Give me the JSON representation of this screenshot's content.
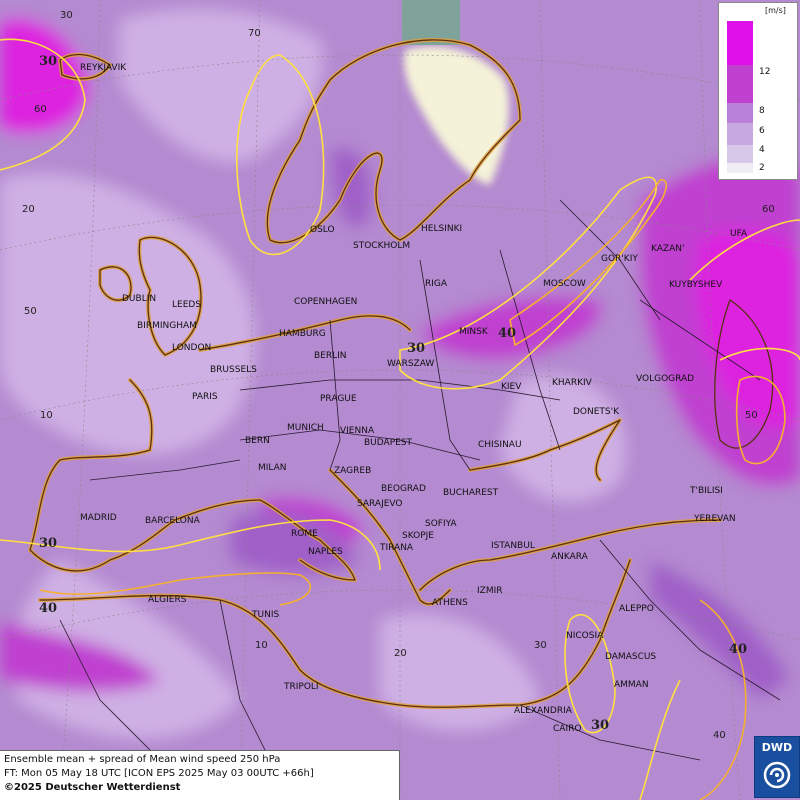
{
  "title": "Ensemble mean + spread of Mean wind speed 250 hPa",
  "forecast_time": "FT: Mon 05 May 18 UTC [ICON EPS 2025 May 03 00UTC +66h]",
  "copyright": "©2025 Deutscher Wetterdienst",
  "logo_text": "DWD",
  "legend": {
    "unit": "[m/s]",
    "levels": [
      {
        "label": "12",
        "color": "#e010e8"
      },
      {
        "label": "8",
        "color": "#c040d0"
      },
      {
        "label": "6",
        "color": "#b880d8"
      },
      {
        "label": "4",
        "color": "#c8a8e0"
      },
      {
        "label": "2",
        "color": "#d8c8e8"
      },
      {
        "label": "",
        "color": "#f0ecf4"
      }
    ]
  },
  "colors": {
    "background": "#b48ad0",
    "light_area": "#cfb0e4",
    "dark_area": "#a060c8",
    "max_area": "#dd22e0",
    "low_spread": "#f4f2d8",
    "coast": "#5a3010",
    "coast_glow": "#e0a040",
    "contour_30": "#ffe040",
    "contour_40": "#f5b030",
    "grid": "#888888"
  },
  "cities": [
    "REYKJAVIK",
    "OSLO",
    "STOCKHOLM",
    "HELSINKI",
    "RIGA",
    "MOSCOW",
    "GOR'KIY",
    "KAZAN'",
    "UFA",
    "KUYBYSHEV",
    "DUBLIN",
    "LEEDS",
    "BIRMINGHAM",
    "LONDON",
    "COPENHAGEN",
    "HAMBURG",
    "MINSK",
    "BERLIN",
    "WARSZAW",
    "BRUSSELS",
    "PARIS",
    "KIEV",
    "KHARKIV",
    "VOLGOGRAD",
    "PRAGUE",
    "DONETS'K",
    "MUNICH",
    "VIENNA",
    "BERN",
    "BUDAPEST",
    "CHISINAU",
    "MILAN",
    "ZAGREB",
    "BEOGRAD",
    "BUCHAREST",
    "T'BILISI",
    "SARAJEVO",
    "MADRID",
    "BARCELONA",
    "SOFIYA",
    "YEREVAN",
    "ROME",
    "SKOPJE",
    "NAPLES",
    "TIRANA",
    "ISTANBUL",
    "ANKARA",
    "ALGIERS",
    "IZMIR",
    "ATHENS",
    "ALEPPO",
    "TUNIS",
    "NICOSIA",
    "DAMASCUS",
    "AMMAN",
    "TRIPOLI",
    "ALEXANDRIA",
    "CAIRO"
  ],
  "grid_labels": [
    "30",
    "70",
    "60",
    "20",
    "50",
    "10",
    "60",
    "50",
    "20",
    "30",
    "10",
    "40"
  ],
  "contour_labels": [
    "30",
    "30",
    "40",
    "30",
    "40",
    "30",
    "40",
    "40",
    "30"
  ]
}
